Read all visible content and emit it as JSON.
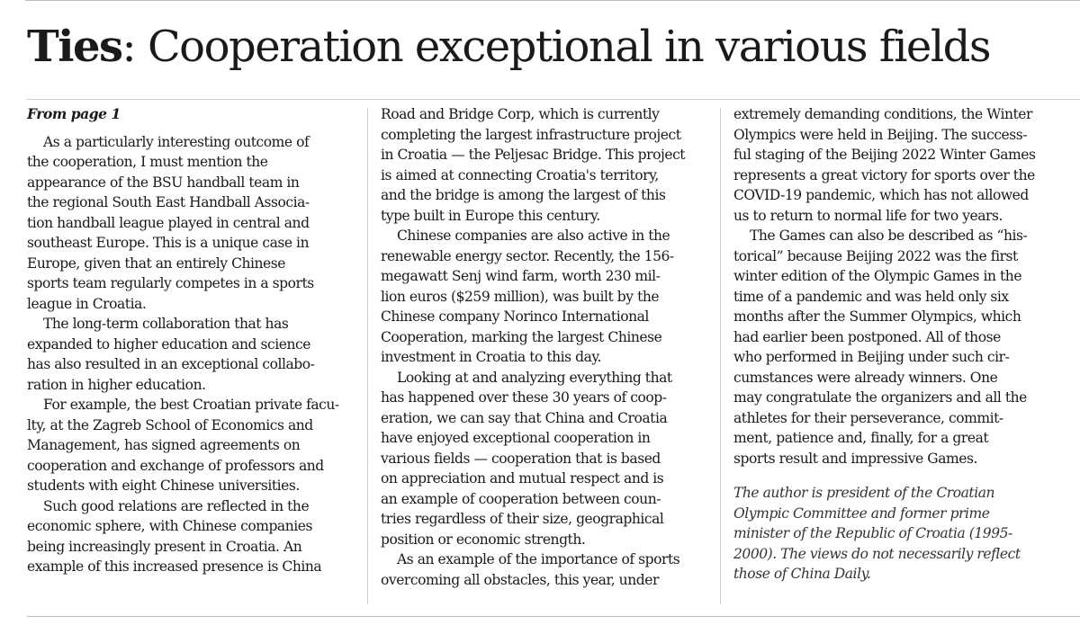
{
  "headline": {
    "lead": "Ties",
    "rest": ": Cooperation exceptional in various fields"
  },
  "kicker": "From page 1",
  "columns": [
    {
      "paragraphs": [
        {
          "lines": [
            "As a particularly interesting outcome of",
            "the cooperation, I must mention the",
            "appearance of the BSU handball team in",
            "the regional South East Handball Associa-",
            "tion handball league played in central and",
            "southeast Europe. This is a unique case in",
            "Europe, given that an entirely Chinese",
            "sports team regularly competes in a sports",
            "league in Croatia."
          ]
        },
        {
          "lines": [
            "The long-term collaboration that has",
            "expanded to higher education and science",
            "has also resulted in an exceptional collabo-",
            "ration in higher education."
          ]
        },
        {
          "lines": [
            "For example, the best Croatian private facu-",
            "lty, at the Zagreb School of Economics and",
            "Management, has signed agreements on",
            "cooperation and exchange of professors and",
            "students with eight Chinese universities."
          ]
        },
        {
          "lines": [
            "Such good relations are reflected in the",
            "economic sphere, with Chinese companies",
            "being increasingly present in Croatia. An",
            "example of this increased presence is China"
          ]
        }
      ]
    },
    {
      "paragraphs": [
        {
          "continued": true,
          "lines": [
            "Road and Bridge Corp, which is currently",
            "completing the largest infrastructure project",
            "in Croatia — the Peljesac Bridge. This project",
            "is aimed at connecting Croatia's territory,",
            "and the bridge is among the largest of this",
            "type built in Europe this century."
          ]
        },
        {
          "lines": [
            "Chinese companies are also active in the",
            "renewable energy sector. Recently, the 156-",
            "megawatt Senj wind farm, worth 230 mil-",
            "lion euros ($259 million), was built by the",
            "Chinese company Norinco International",
            "Cooperation, marking the largest Chinese",
            "investment in Croatia to this day."
          ]
        },
        {
          "lines": [
            "Looking at and analyzing everything that",
            "has happened over these 30 years of coop-",
            "eration, we can say that China and Croatia",
            "have enjoyed exceptional cooperation in",
            "various fields — cooperation that is based",
            "on appreciation and mutual respect and is",
            "an example of cooperation between coun-",
            "tries regardless of their size, geographical",
            "position or economic strength."
          ]
        },
        {
          "lines": [
            "As an example of the importance of sports",
            "overcoming all obstacles, this year, under"
          ]
        }
      ]
    },
    {
      "paragraphs": [
        {
          "continued": true,
          "lines": [
            "extremely demanding conditions, the Winter",
            "Olympics were held in Beijing. The success-",
            "ful staging of the Beijing 2022 Winter Games",
            "represents a great victory for sports over the",
            "COVID-19 pandemic, which has not allowed",
            "us to return to normal life for two years."
          ]
        },
        {
          "lines": [
            "The Games can also be described as “his-",
            "torical” because Beijing 2022 was the first",
            "winter edition of the Olympic Games in the",
            "time of a pandemic and was held only six",
            "months after the Summer Olympics, which",
            "had earlier been postponed. All of those",
            "who performed in Beijing under such cir-",
            "cumstances were already winners. One",
            "may congratulate the organizers and all the",
            "athletes for their perseverance, commit-",
            "ment, patience and, finally, for a great",
            "sports result and impressive Games."
          ]
        }
      ],
      "note": [
        "The author is president of the Croatian",
        "Olympic Committee and former prime",
        "minister of the Republic of Croatia (1995-",
        "2000). The views do not necessarily reflect",
        "those of China Daily."
      ]
    }
  ]
}
